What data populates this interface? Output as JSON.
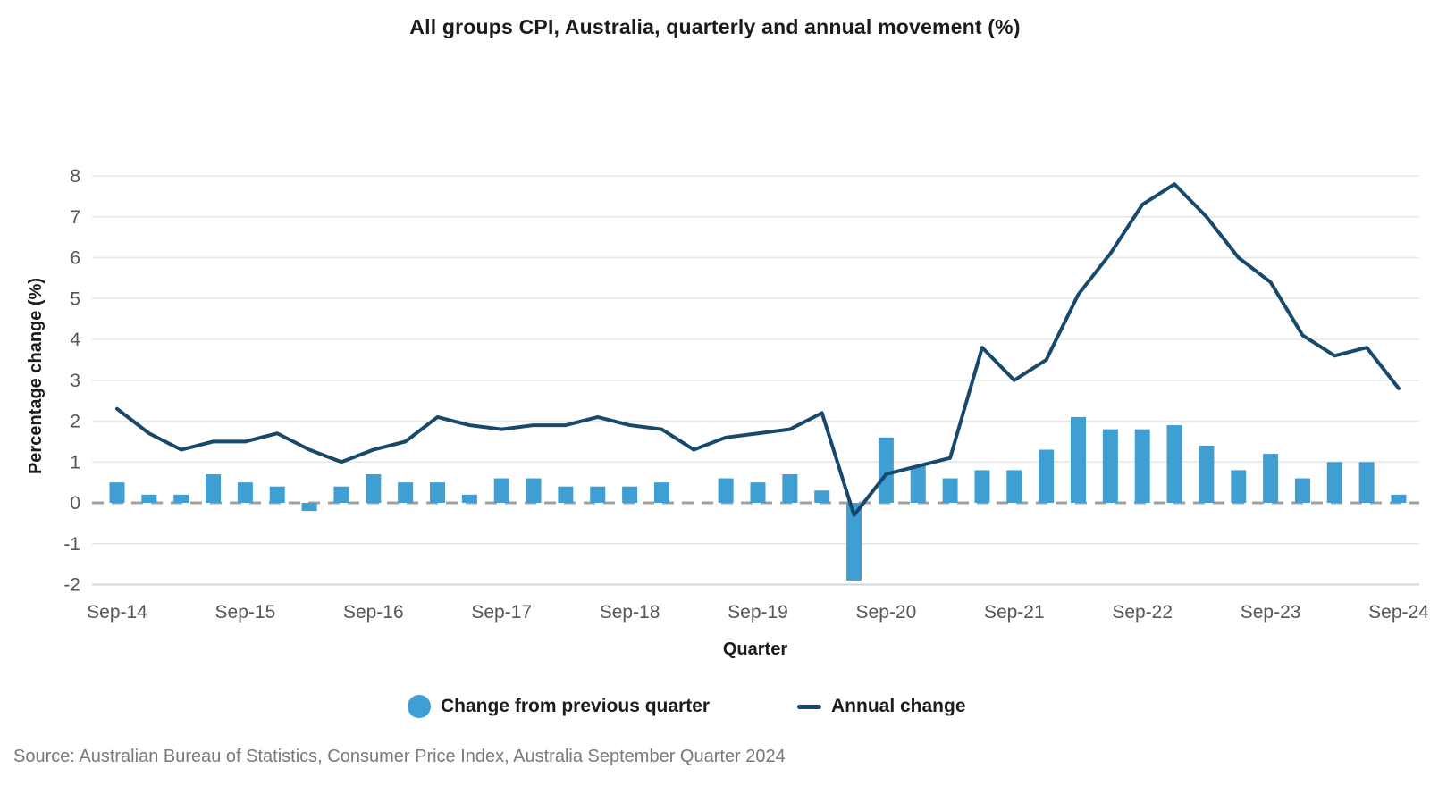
{
  "chart_data": {
    "type": "bar+line",
    "title": "All groups CPI, Australia, quarterly and annual movement (%)",
    "xlabel": "Quarter",
    "ylabel": "Percentage change (%)",
    "ylim": [
      -2,
      8
    ],
    "yticks": [
      8,
      7,
      6,
      5,
      4,
      3,
      2,
      1,
      0,
      -1,
      -2
    ],
    "x_visible_tick_labels": [
      "Sep-14",
      "Sep-15",
      "Sep-16",
      "Sep-17",
      "Sep-18",
      "Sep-19",
      "Sep-20",
      "Sep-21",
      "Sep-22",
      "Sep-23",
      "Sep-24"
    ],
    "categories": [
      "Sep-14",
      "Dec-14",
      "Mar-15",
      "Jun-15",
      "Sep-15",
      "Dec-15",
      "Mar-16",
      "Jun-16",
      "Sep-16",
      "Dec-16",
      "Mar-17",
      "Jun-17",
      "Sep-17",
      "Dec-17",
      "Mar-18",
      "Jun-18",
      "Sep-18",
      "Dec-18",
      "Mar-19",
      "Jun-19",
      "Sep-19",
      "Dec-19",
      "Mar-20",
      "Jun-20",
      "Sep-20",
      "Dec-20",
      "Mar-21",
      "Jun-21",
      "Sep-21",
      "Dec-21",
      "Mar-22",
      "Jun-22",
      "Sep-22",
      "Dec-22",
      "Mar-23",
      "Jun-23",
      "Sep-23",
      "Dec-23",
      "Mar-24",
      "Jun-24",
      "Sep-24"
    ],
    "series": [
      {
        "name": "Change from previous quarter",
        "type": "bar",
        "marker": "circle",
        "color": "#3f9fd3",
        "values": [
          0.5,
          0.2,
          0.2,
          0.7,
          0.5,
          0.4,
          -0.2,
          0.4,
          0.7,
          0.5,
          0.5,
          0.2,
          0.6,
          0.6,
          0.4,
          0.4,
          0.4,
          0.5,
          0.0,
          0.6,
          0.5,
          0.7,
          0.3,
          -1.9,
          1.6,
          0.9,
          0.6,
          0.8,
          0.8,
          1.3,
          2.1,
          1.8,
          1.8,
          1.9,
          1.4,
          0.8,
          1.2,
          0.6,
          1.0,
          1.0,
          0.2
        ]
      },
      {
        "name": "Annual change",
        "type": "line",
        "marker": "line",
        "color": "#17496d",
        "values": [
          2.3,
          1.7,
          1.3,
          1.5,
          1.5,
          1.7,
          1.3,
          1.0,
          1.3,
          1.5,
          2.1,
          1.9,
          1.8,
          1.9,
          1.9,
          2.1,
          1.9,
          1.8,
          1.3,
          1.6,
          1.7,
          1.8,
          2.2,
          -0.3,
          0.7,
          0.9,
          1.1,
          3.8,
          3.0,
          3.5,
          5.1,
          6.1,
          7.3,
          7.8,
          7.0,
          6.0,
          5.4,
          4.1,
          3.6,
          3.8,
          2.8
        ]
      }
    ],
    "grid": true,
    "zero_line": "dashed",
    "legend_position": "bottom"
  },
  "source": "Source: Australian Bureau of Statistics, Consumer Price Index, Australia September Quarter 2024",
  "colors": {
    "bar": "#3f9fd3",
    "line": "#17496d",
    "grid": "#e5e6e8",
    "axis_bottom_line": "#ccd7e0",
    "zero_line": "#a1a1a1",
    "tick_text": "#54565a",
    "title_text": "#1b1b1d",
    "source_text": "#77797c",
    "background": "#ffffff"
  }
}
